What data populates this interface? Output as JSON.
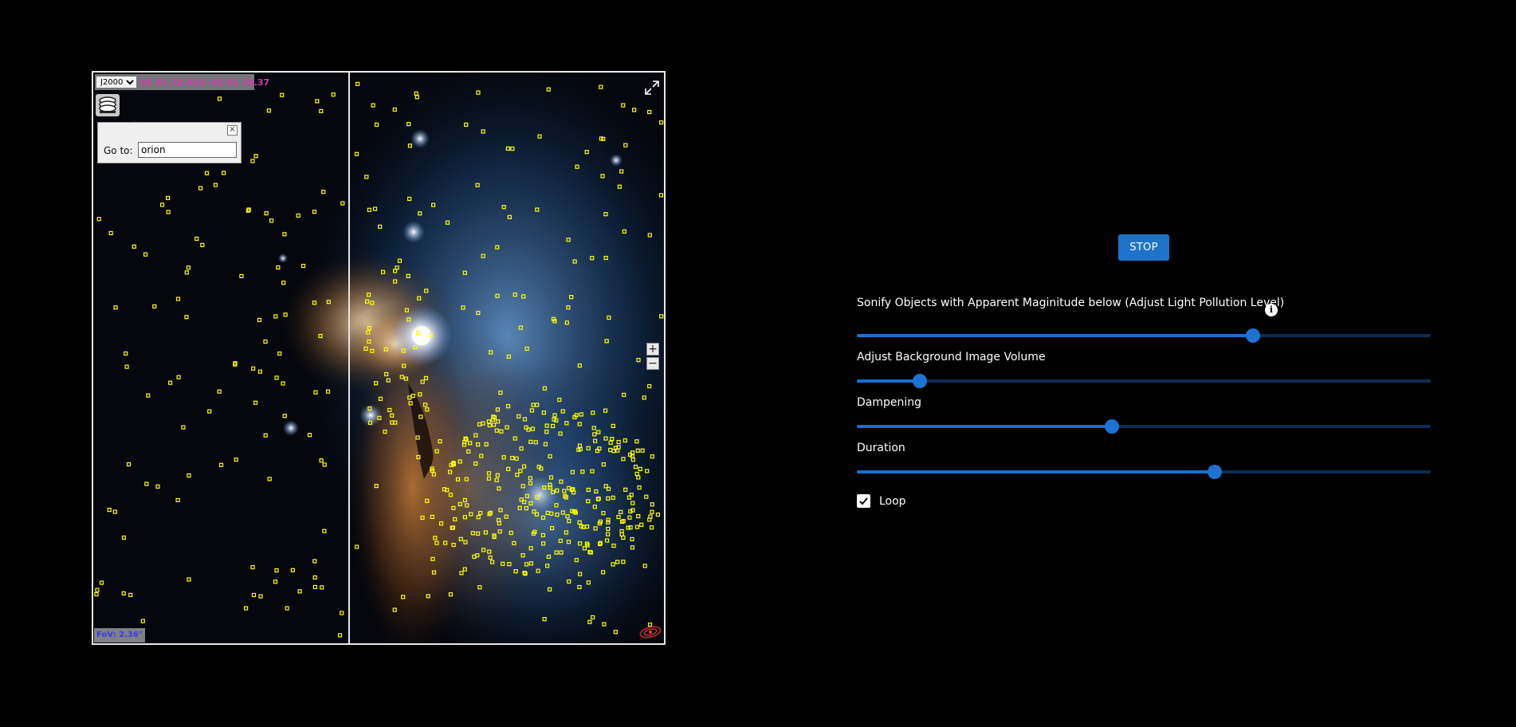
{
  "viewer": {
    "frame_options": [
      "J2000"
    ],
    "frame_selected": "J2000",
    "coordinates": "05 41 32.410 -02 01 39.37",
    "goto_label": "Go to:",
    "goto_value": "orion",
    "fov": "FoV: 2.36°",
    "zoom_in": "+",
    "zoom_out": "−",
    "close_glyph": "×",
    "icons": [
      "layers-icon",
      "close-icon",
      "fullscreen-icon",
      "plus-icon",
      "minus-icon",
      "galaxy-logo-icon"
    ]
  },
  "controls": {
    "stop_label": "STOP",
    "magnitude_label": "Sonify Objects with Apparent Maginitude below (Adjust Light Pollution Level)",
    "info_glyph": "i",
    "volume_label": "Adjust Background Image Volume",
    "dampening_label": "Dampening",
    "duration_label": "Duration",
    "loop_label": "Loop",
    "loop_checked": true,
    "sliders": {
      "magnitude": 0.69,
      "volume": 0.11,
      "dampening": 0.445,
      "duration": 0.623
    }
  },
  "colors": {
    "accent": "#1e73c8",
    "track": "#0f2c52",
    "marker": "#ffff00",
    "coord_text": "#d73bb5"
  }
}
